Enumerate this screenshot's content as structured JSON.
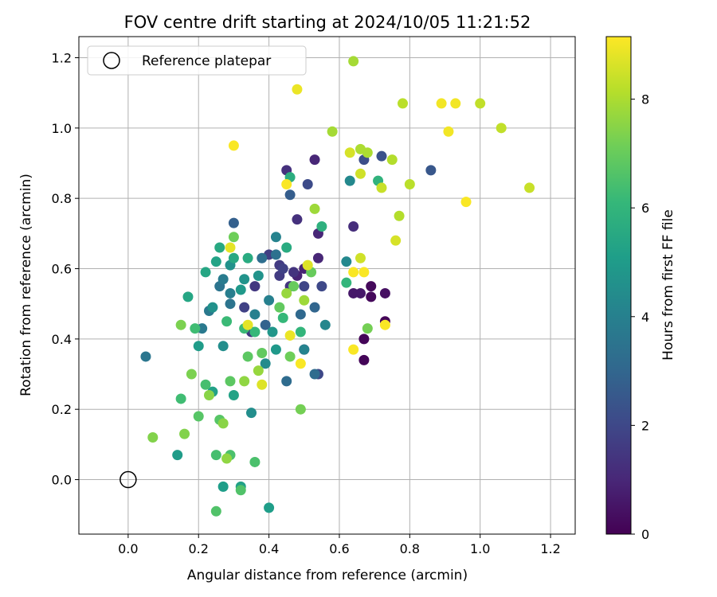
{
  "chart_data": {
    "type": "scatter",
    "title": "FOV centre drift starting at 2024/10/05 11:21:52",
    "xlabel": "Angular distance from reference (arcmin)",
    "ylabel": "Rotation from reference (arcmin)",
    "xlim": [
      -0.14,
      1.27
    ],
    "ylim": [
      -0.155,
      1.26
    ],
    "xticks": [
      "0.0",
      "0.2",
      "0.4",
      "0.6",
      "0.8",
      "1.0",
      "1.2"
    ],
    "yticks": [
      "0.0",
      "0.2",
      "0.4",
      "0.6",
      "0.8",
      "1.0",
      "1.2"
    ],
    "grid": true,
    "legend": {
      "placement": "top-left",
      "entries": [
        "Reference platepar"
      ]
    },
    "reference_point": {
      "x": 0.0,
      "y": 0.0
    },
    "colorbar": {
      "label": "Hours from first FF file",
      "range": [
        0,
        9.15
      ],
      "ticks": [
        "0",
        "2",
        "4",
        "6",
        "8"
      ],
      "colormap": "viridis"
    },
    "points": [
      {
        "x": 0.73,
        "y": 0.45,
        "h": 0.1
      },
      {
        "x": 0.67,
        "y": 0.34,
        "h": 0.1
      },
      {
        "x": 0.67,
        "y": 0.4,
        "h": 0.1
      },
      {
        "x": 0.69,
        "y": 0.55,
        "h": 0.2
      },
      {
        "x": 0.69,
        "y": 0.52,
        "h": 0.2
      },
      {
        "x": 0.73,
        "y": 0.53,
        "h": 0.4
      },
      {
        "x": 0.64,
        "y": 0.53,
        "h": 0.6
      },
      {
        "x": 0.66,
        "y": 0.53,
        "h": 0.6
      },
      {
        "x": 0.5,
        "y": 0.37,
        "h": 0.8
      },
      {
        "x": 0.48,
        "y": 0.58,
        "h": 0.9
      },
      {
        "x": 0.5,
        "y": 0.6,
        "h": 0.9
      },
      {
        "x": 0.54,
        "y": 0.7,
        "h": 1.0
      },
      {
        "x": 0.54,
        "y": 0.63,
        "h": 1.0
      },
      {
        "x": 0.53,
        "y": 0.91,
        "h": 1.0
      },
      {
        "x": 0.64,
        "y": 0.72,
        "h": 1.2
      },
      {
        "x": 0.48,
        "y": 0.74,
        "h": 1.3
      },
      {
        "x": 0.45,
        "y": 0.88,
        "h": 1.3
      },
      {
        "x": 0.47,
        "y": 0.59,
        "h": 1.4
      },
      {
        "x": 0.46,
        "y": 0.55,
        "h": 1.4
      },
      {
        "x": 0.36,
        "y": 0.55,
        "h": 1.5
      },
      {
        "x": 0.35,
        "y": 0.42,
        "h": 1.5
      },
      {
        "x": 0.43,
        "y": 0.61,
        "h": 1.6
      },
      {
        "x": 0.43,
        "y": 0.58,
        "h": 1.6
      },
      {
        "x": 0.4,
        "y": 0.64,
        "h": 1.7
      },
      {
        "x": 0.33,
        "y": 0.49,
        "h": 1.8
      },
      {
        "x": 0.44,
        "y": 0.6,
        "h": 1.8
      },
      {
        "x": 0.5,
        "y": 0.55,
        "h": 1.9
      },
      {
        "x": 0.55,
        "y": 0.55,
        "h": 2.0
      },
      {
        "x": 0.54,
        "y": 0.3,
        "h": 2.0
      },
      {
        "x": 0.51,
        "y": 0.84,
        "h": 2.1
      },
      {
        "x": 0.67,
        "y": 0.91,
        "h": 2.2
      },
      {
        "x": 0.72,
        "y": 0.92,
        "h": 2.3
      },
      {
        "x": 0.86,
        "y": 0.88,
        "h": 2.5
      },
      {
        "x": 0.46,
        "y": 0.81,
        "h": 2.7
      },
      {
        "x": 0.3,
        "y": 0.73,
        "h": 2.8
      },
      {
        "x": 0.39,
        "y": 0.44,
        "h": 2.9
      },
      {
        "x": 0.53,
        "y": 0.49,
        "h": 3.0
      },
      {
        "x": 0.49,
        "y": 0.47,
        "h": 3.1
      },
      {
        "x": 0.45,
        "y": 0.28,
        "h": 3.2
      },
      {
        "x": 0.53,
        "y": 0.3,
        "h": 3.2
      },
      {
        "x": 0.38,
        "y": 0.63,
        "h": 3.3
      },
      {
        "x": 0.42,
        "y": 0.64,
        "h": 3.4
      },
      {
        "x": 0.26,
        "y": 0.55,
        "h": 3.5
      },
      {
        "x": 0.29,
        "y": 0.5,
        "h": 3.5
      },
      {
        "x": 0.05,
        "y": 0.35,
        "h": 3.6
      },
      {
        "x": 0.21,
        "y": 0.43,
        "h": 3.7
      },
      {
        "x": 0.23,
        "y": 0.48,
        "h": 3.7
      },
      {
        "x": 0.27,
        "y": 0.57,
        "h": 3.8
      },
      {
        "x": 0.29,
        "y": 0.53,
        "h": 3.9
      },
      {
        "x": 0.36,
        "y": 0.47,
        "h": 4.0
      },
      {
        "x": 0.4,
        "y": 0.51,
        "h": 4.0
      },
      {
        "x": 0.42,
        "y": 0.69,
        "h": 4.1
      },
      {
        "x": 0.5,
        "y": 0.37,
        "h": 4.1
      },
      {
        "x": 0.56,
        "y": 0.44,
        "h": 4.2
      },
      {
        "x": 0.62,
        "y": 0.62,
        "h": 4.3
      },
      {
        "x": 0.63,
        "y": 0.85,
        "h": 4.3
      },
      {
        "x": 0.39,
        "y": 0.33,
        "h": 4.4
      },
      {
        "x": 0.35,
        "y": 0.19,
        "h": 4.5
      },
      {
        "x": 0.27,
        "y": 0.38,
        "h": 4.5
      },
      {
        "x": 0.24,
        "y": 0.49,
        "h": 4.6
      },
      {
        "x": 0.29,
        "y": 0.61,
        "h": 4.6
      },
      {
        "x": 0.33,
        "y": 0.57,
        "h": 4.7
      },
      {
        "x": 0.37,
        "y": 0.58,
        "h": 4.7
      },
      {
        "x": 0.41,
        "y": 0.42,
        "h": 4.8
      },
      {
        "x": 0.42,
        "y": 0.37,
        "h": 4.9
      },
      {
        "x": 0.32,
        "y": 0.54,
        "h": 4.9
      },
      {
        "x": 0.2,
        "y": 0.38,
        "h": 5.0
      },
      {
        "x": 0.14,
        "y": 0.07,
        "h": 5.0
      },
      {
        "x": 0.4,
        "y": -0.08,
        "h": 5.1
      },
      {
        "x": 0.27,
        "y": -0.02,
        "h": 5.1
      },
      {
        "x": 0.32,
        "y": -0.02,
        "h": 5.2
      },
      {
        "x": 0.24,
        "y": 0.25,
        "h": 5.2
      },
      {
        "x": 0.3,
        "y": 0.24,
        "h": 5.3
      },
      {
        "x": 0.25,
        "y": 0.62,
        "h": 5.3
      },
      {
        "x": 0.22,
        "y": 0.59,
        "h": 5.4
      },
      {
        "x": 0.17,
        "y": 0.52,
        "h": 5.4
      },
      {
        "x": 0.26,
        "y": 0.66,
        "h": 5.5
      },
      {
        "x": 0.3,
        "y": 0.63,
        "h": 5.5
      },
      {
        "x": 0.34,
        "y": 0.63,
        "h": 5.6
      },
      {
        "x": 0.45,
        "y": 0.66,
        "h": 5.6
      },
      {
        "x": 0.46,
        "y": 0.86,
        "h": 5.7
      },
      {
        "x": 0.55,
        "y": 0.72,
        "h": 5.8
      },
      {
        "x": 0.71,
        "y": 0.85,
        "h": 5.9
      },
      {
        "x": 0.62,
        "y": 0.56,
        "h": 6.0
      },
      {
        "x": 0.49,
        "y": 0.42,
        "h": 6.0
      },
      {
        "x": 0.44,
        "y": 0.46,
        "h": 6.1
      },
      {
        "x": 0.36,
        "y": 0.42,
        "h": 6.1
      },
      {
        "x": 0.33,
        "y": 0.43,
        "h": 6.2
      },
      {
        "x": 0.28,
        "y": 0.45,
        "h": 6.2
      },
      {
        "x": 0.19,
        "y": 0.43,
        "h": 6.3
      },
      {
        "x": 0.15,
        "y": 0.23,
        "h": 6.3
      },
      {
        "x": 0.22,
        "y": 0.27,
        "h": 6.4
      },
      {
        "x": 0.25,
        "y": 0.07,
        "h": 6.4
      },
      {
        "x": 0.29,
        "y": 0.07,
        "h": 6.5
      },
      {
        "x": 0.36,
        "y": 0.05,
        "h": 6.5
      },
      {
        "x": 0.25,
        "y": -0.09,
        "h": 6.6
      },
      {
        "x": 0.32,
        "y": -0.03,
        "h": 6.6
      },
      {
        "x": 0.2,
        "y": 0.18,
        "h": 6.7
      },
      {
        "x": 0.26,
        "y": 0.17,
        "h": 6.7
      },
      {
        "x": 0.29,
        "y": 0.28,
        "h": 6.8
      },
      {
        "x": 0.34,
        "y": 0.35,
        "h": 6.8
      },
      {
        "x": 0.38,
        "y": 0.36,
        "h": 6.9
      },
      {
        "x": 0.43,
        "y": 0.49,
        "h": 6.9
      },
      {
        "x": 0.47,
        "y": 0.55,
        "h": 7.0
      },
      {
        "x": 0.52,
        "y": 0.59,
        "h": 7.0
      },
      {
        "x": 0.3,
        "y": 0.69,
        "h": 7.1
      },
      {
        "x": 0.46,
        "y": 0.35,
        "h": 7.1
      },
      {
        "x": 0.49,
        "y": 0.2,
        "h": 7.2
      },
      {
        "x": 0.68,
        "y": 0.43,
        "h": 7.2
      },
      {
        "x": 0.15,
        "y": 0.44,
        "h": 7.3
      },
      {
        "x": 0.18,
        "y": 0.3,
        "h": 7.3
      },
      {
        "x": 0.07,
        "y": 0.12,
        "h": 7.4
      },
      {
        "x": 0.16,
        "y": 0.13,
        "h": 7.4
      },
      {
        "x": 0.23,
        "y": 0.24,
        "h": 7.5
      },
      {
        "x": 0.27,
        "y": 0.16,
        "h": 7.5
      },
      {
        "x": 0.28,
        "y": 0.06,
        "h": 7.6
      },
      {
        "x": 0.33,
        "y": 0.28,
        "h": 7.6
      },
      {
        "x": 0.37,
        "y": 0.31,
        "h": 7.7
      },
      {
        "x": 0.45,
        "y": 0.53,
        "h": 7.7
      },
      {
        "x": 0.5,
        "y": 0.51,
        "h": 7.8
      },
      {
        "x": 0.53,
        "y": 0.77,
        "h": 7.8
      },
      {
        "x": 0.58,
        "y": 0.99,
        "h": 7.9
      },
      {
        "x": 0.64,
        "y": 1.19,
        "h": 7.9
      },
      {
        "x": 0.66,
        "y": 0.94,
        "h": 8.0
      },
      {
        "x": 0.68,
        "y": 0.93,
        "h": 8.0
      },
      {
        "x": 0.75,
        "y": 0.91,
        "h": 8.1
      },
      {
        "x": 0.77,
        "y": 0.75,
        "h": 8.1
      },
      {
        "x": 0.8,
        "y": 0.84,
        "h": 8.2
      },
      {
        "x": 0.78,
        "y": 1.07,
        "h": 8.2
      },
      {
        "x": 1.0,
        "y": 1.07,
        "h": 8.3
      },
      {
        "x": 1.06,
        "y": 1.0,
        "h": 8.3
      },
      {
        "x": 1.14,
        "y": 0.83,
        "h": 8.4
      },
      {
        "x": 0.72,
        "y": 0.83,
        "h": 8.4
      },
      {
        "x": 0.66,
        "y": 0.87,
        "h": 8.5
      },
      {
        "x": 0.66,
        "y": 0.63,
        "h": 8.5
      },
      {
        "x": 0.76,
        "y": 0.68,
        "h": 8.6
      },
      {
        "x": 0.63,
        "y": 0.93,
        "h": 8.6
      },
      {
        "x": 0.51,
        "y": 0.61,
        "h": 8.7
      },
      {
        "x": 0.38,
        "y": 0.27,
        "h": 8.7
      },
      {
        "x": 0.34,
        "y": 0.44,
        "h": 8.8
      },
      {
        "x": 0.29,
        "y": 0.66,
        "h": 8.8
      },
      {
        "x": 0.46,
        "y": 0.41,
        "h": 8.9
      },
      {
        "x": 0.48,
        "y": 1.11,
        "h": 8.9
      },
      {
        "x": 0.89,
        "y": 1.07,
        "h": 9.0
      },
      {
        "x": 0.93,
        "y": 1.07,
        "h": 9.0
      },
      {
        "x": 0.91,
        "y": 0.99,
        "h": 9.0
      },
      {
        "x": 0.96,
        "y": 0.79,
        "h": 9.1
      },
      {
        "x": 0.73,
        "y": 0.44,
        "h": 9.1
      },
      {
        "x": 0.64,
        "y": 0.37,
        "h": 9.1
      },
      {
        "x": 0.67,
        "y": 0.59,
        "h": 9.1
      },
      {
        "x": 0.64,
        "y": 0.59,
        "h": 9.1
      },
      {
        "x": 0.49,
        "y": 0.33,
        "h": 9.1
      },
      {
        "x": 0.45,
        "y": 0.84,
        "h": 9.1
      },
      {
        "x": 0.3,
        "y": 0.95,
        "h": 9.1
      }
    ]
  }
}
